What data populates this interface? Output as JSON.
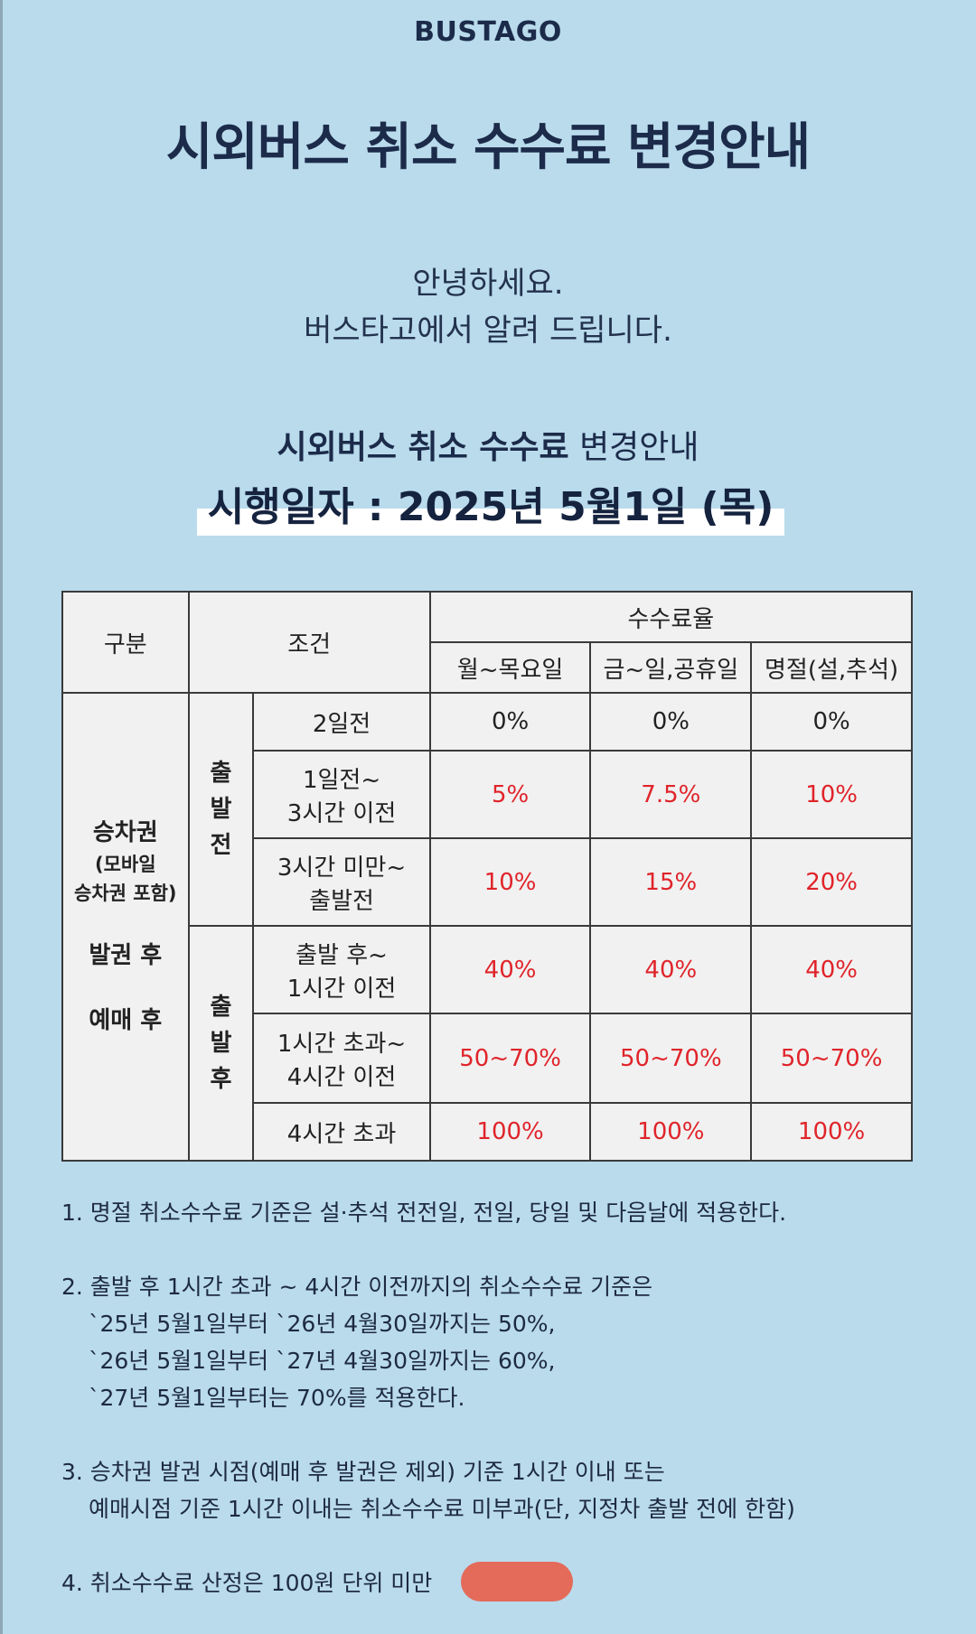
{
  "brand": "BUSTAGO",
  "title": "시외버스 취소 수수료 변경안내",
  "greeting": [
    "안녕하세요.",
    "버스타고에서 알려 드립니다."
  ],
  "subtitle": {
    "bold": "시외버스 취소 수수료",
    "normal": "변경안내"
  },
  "effective_date": "시행일자 : 2025년 5월1일 (목)",
  "table": {
    "header": {
      "category": "구분",
      "condition": "조건",
      "rate": "수수료율",
      "col1": "월~목요일",
      "col2": "금~일,공휴일",
      "col3": "명절(설,추석)"
    },
    "category_lines": [
      "승차권",
      "(모바일",
      "승차권 포함)",
      "발권 후",
      "예매 후"
    ],
    "before_departure": [
      "출",
      "발",
      "전"
    ],
    "after_departure": [
      "출",
      "발",
      "후"
    ],
    "rows": [
      {
        "condition": [
          "2일전"
        ],
        "values": [
          "0%",
          "0%",
          "0%"
        ],
        "red": false
      },
      {
        "condition": [
          "1일전~",
          "3시간 이전"
        ],
        "values": [
          "5%",
          "7.5%",
          "10%"
        ],
        "red": true
      },
      {
        "condition": [
          "3시간 미만~",
          "출발전"
        ],
        "values": [
          "10%",
          "15%",
          "20%"
        ],
        "red": true
      },
      {
        "condition": [
          "출발 후~",
          "1시간 이전"
        ],
        "values": [
          "40%",
          "40%",
          "40%"
        ],
        "red": true
      },
      {
        "condition": [
          "1시간 초과~",
          "4시간 이전"
        ],
        "values": [
          "50~70%",
          "50~70%",
          "50~70%"
        ],
        "red": true
      },
      {
        "condition": [
          "4시간 초과"
        ],
        "values": [
          "100%",
          "100%",
          "100%"
        ],
        "red": true
      }
    ]
  },
  "notes": {
    "n1": "1. 명절 취소수수료 기준은 설·추석 전전일, 전일, 당일 및 다음날에 적용한다.",
    "n2": [
      "2. 출발 후 1시간 초과 ~ 4시간 이전까지의 취소수수료 기준은",
      "`25년 5월1일부터 `26년 4월30일까지는 50%,",
      "`26년 5월1일부터 `27년 4월30일까지는 60%,",
      "`27년 5월1일부터는 70%를 적용한다."
    ],
    "n3": [
      "3. 승차권 발권 시점(예매 후 발권은 제외) 기준 1시간 이내 또는",
      "예매시점 기준 1시간 이내는 취소수수료 미부과(단, 지정차 출발 전에 한함)"
    ],
    "n4": "4. 취소수수료 산정은 100원 단위 미만"
  }
}
